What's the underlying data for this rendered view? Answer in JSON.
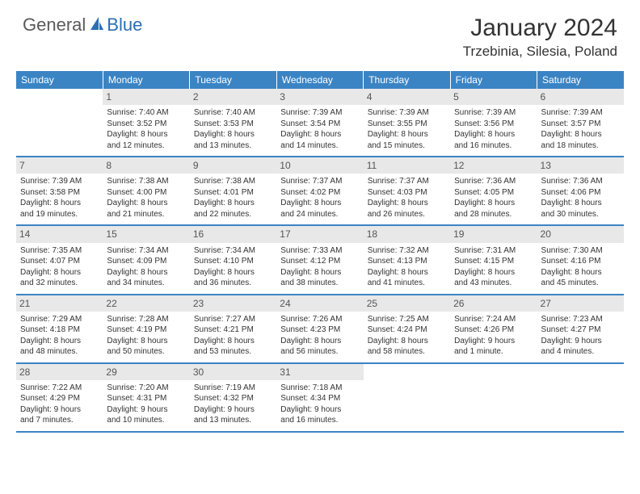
{
  "brand": {
    "part1": "General",
    "part2": "Blue"
  },
  "title": "January 2024",
  "location": "Trzebinia, Silesia, Poland",
  "header_bg": "#3b84c4",
  "day_names": [
    "Sunday",
    "Monday",
    "Tuesday",
    "Wednesday",
    "Thursday",
    "Friday",
    "Saturday"
  ],
  "weeks": [
    [
      {
        "n": "",
        "sr": "",
        "ss": "",
        "dl1": "",
        "dl2": "",
        "empty": true
      },
      {
        "n": "1",
        "sr": "Sunrise: 7:40 AM",
        "ss": "Sunset: 3:52 PM",
        "dl1": "Daylight: 8 hours",
        "dl2": "and 12 minutes."
      },
      {
        "n": "2",
        "sr": "Sunrise: 7:40 AM",
        "ss": "Sunset: 3:53 PM",
        "dl1": "Daylight: 8 hours",
        "dl2": "and 13 minutes."
      },
      {
        "n": "3",
        "sr": "Sunrise: 7:39 AM",
        "ss": "Sunset: 3:54 PM",
        "dl1": "Daylight: 8 hours",
        "dl2": "and 14 minutes."
      },
      {
        "n": "4",
        "sr": "Sunrise: 7:39 AM",
        "ss": "Sunset: 3:55 PM",
        "dl1": "Daylight: 8 hours",
        "dl2": "and 15 minutes."
      },
      {
        "n": "5",
        "sr": "Sunrise: 7:39 AM",
        "ss": "Sunset: 3:56 PM",
        "dl1": "Daylight: 8 hours",
        "dl2": "and 16 minutes."
      },
      {
        "n": "6",
        "sr": "Sunrise: 7:39 AM",
        "ss": "Sunset: 3:57 PM",
        "dl1": "Daylight: 8 hours",
        "dl2": "and 18 minutes."
      }
    ],
    [
      {
        "n": "7",
        "sr": "Sunrise: 7:39 AM",
        "ss": "Sunset: 3:58 PM",
        "dl1": "Daylight: 8 hours",
        "dl2": "and 19 minutes."
      },
      {
        "n": "8",
        "sr": "Sunrise: 7:38 AM",
        "ss": "Sunset: 4:00 PM",
        "dl1": "Daylight: 8 hours",
        "dl2": "and 21 minutes."
      },
      {
        "n": "9",
        "sr": "Sunrise: 7:38 AM",
        "ss": "Sunset: 4:01 PM",
        "dl1": "Daylight: 8 hours",
        "dl2": "and 22 minutes."
      },
      {
        "n": "10",
        "sr": "Sunrise: 7:37 AM",
        "ss": "Sunset: 4:02 PM",
        "dl1": "Daylight: 8 hours",
        "dl2": "and 24 minutes."
      },
      {
        "n": "11",
        "sr": "Sunrise: 7:37 AM",
        "ss": "Sunset: 4:03 PM",
        "dl1": "Daylight: 8 hours",
        "dl2": "and 26 minutes."
      },
      {
        "n": "12",
        "sr": "Sunrise: 7:36 AM",
        "ss": "Sunset: 4:05 PM",
        "dl1": "Daylight: 8 hours",
        "dl2": "and 28 minutes."
      },
      {
        "n": "13",
        "sr": "Sunrise: 7:36 AM",
        "ss": "Sunset: 4:06 PM",
        "dl1": "Daylight: 8 hours",
        "dl2": "and 30 minutes."
      }
    ],
    [
      {
        "n": "14",
        "sr": "Sunrise: 7:35 AM",
        "ss": "Sunset: 4:07 PM",
        "dl1": "Daylight: 8 hours",
        "dl2": "and 32 minutes."
      },
      {
        "n": "15",
        "sr": "Sunrise: 7:34 AM",
        "ss": "Sunset: 4:09 PM",
        "dl1": "Daylight: 8 hours",
        "dl2": "and 34 minutes."
      },
      {
        "n": "16",
        "sr": "Sunrise: 7:34 AM",
        "ss": "Sunset: 4:10 PM",
        "dl1": "Daylight: 8 hours",
        "dl2": "and 36 minutes."
      },
      {
        "n": "17",
        "sr": "Sunrise: 7:33 AM",
        "ss": "Sunset: 4:12 PM",
        "dl1": "Daylight: 8 hours",
        "dl2": "and 38 minutes."
      },
      {
        "n": "18",
        "sr": "Sunrise: 7:32 AM",
        "ss": "Sunset: 4:13 PM",
        "dl1": "Daylight: 8 hours",
        "dl2": "and 41 minutes."
      },
      {
        "n": "19",
        "sr": "Sunrise: 7:31 AM",
        "ss": "Sunset: 4:15 PM",
        "dl1": "Daylight: 8 hours",
        "dl2": "and 43 minutes."
      },
      {
        "n": "20",
        "sr": "Sunrise: 7:30 AM",
        "ss": "Sunset: 4:16 PM",
        "dl1": "Daylight: 8 hours",
        "dl2": "and 45 minutes."
      }
    ],
    [
      {
        "n": "21",
        "sr": "Sunrise: 7:29 AM",
        "ss": "Sunset: 4:18 PM",
        "dl1": "Daylight: 8 hours",
        "dl2": "and 48 minutes."
      },
      {
        "n": "22",
        "sr": "Sunrise: 7:28 AM",
        "ss": "Sunset: 4:19 PM",
        "dl1": "Daylight: 8 hours",
        "dl2": "and 50 minutes."
      },
      {
        "n": "23",
        "sr": "Sunrise: 7:27 AM",
        "ss": "Sunset: 4:21 PM",
        "dl1": "Daylight: 8 hours",
        "dl2": "and 53 minutes."
      },
      {
        "n": "24",
        "sr": "Sunrise: 7:26 AM",
        "ss": "Sunset: 4:23 PM",
        "dl1": "Daylight: 8 hours",
        "dl2": "and 56 minutes."
      },
      {
        "n": "25",
        "sr": "Sunrise: 7:25 AM",
        "ss": "Sunset: 4:24 PM",
        "dl1": "Daylight: 8 hours",
        "dl2": "and 58 minutes."
      },
      {
        "n": "26",
        "sr": "Sunrise: 7:24 AM",
        "ss": "Sunset: 4:26 PM",
        "dl1": "Daylight: 9 hours",
        "dl2": "and 1 minute."
      },
      {
        "n": "27",
        "sr": "Sunrise: 7:23 AM",
        "ss": "Sunset: 4:27 PM",
        "dl1": "Daylight: 9 hours",
        "dl2": "and 4 minutes."
      }
    ],
    [
      {
        "n": "28",
        "sr": "Sunrise: 7:22 AM",
        "ss": "Sunset: 4:29 PM",
        "dl1": "Daylight: 9 hours",
        "dl2": "and 7 minutes."
      },
      {
        "n": "29",
        "sr": "Sunrise: 7:20 AM",
        "ss": "Sunset: 4:31 PM",
        "dl1": "Daylight: 9 hours",
        "dl2": "and 10 minutes."
      },
      {
        "n": "30",
        "sr": "Sunrise: 7:19 AM",
        "ss": "Sunset: 4:32 PM",
        "dl1": "Daylight: 9 hours",
        "dl2": "and 13 minutes."
      },
      {
        "n": "31",
        "sr": "Sunrise: 7:18 AM",
        "ss": "Sunset: 4:34 PM",
        "dl1": "Daylight: 9 hours",
        "dl2": "and 16 minutes."
      },
      {
        "n": "",
        "sr": "",
        "ss": "",
        "dl1": "",
        "dl2": "",
        "empty": true
      },
      {
        "n": "",
        "sr": "",
        "ss": "",
        "dl1": "",
        "dl2": "",
        "empty": true
      },
      {
        "n": "",
        "sr": "",
        "ss": "",
        "dl1": "",
        "dl2": "",
        "empty": true
      }
    ]
  ]
}
